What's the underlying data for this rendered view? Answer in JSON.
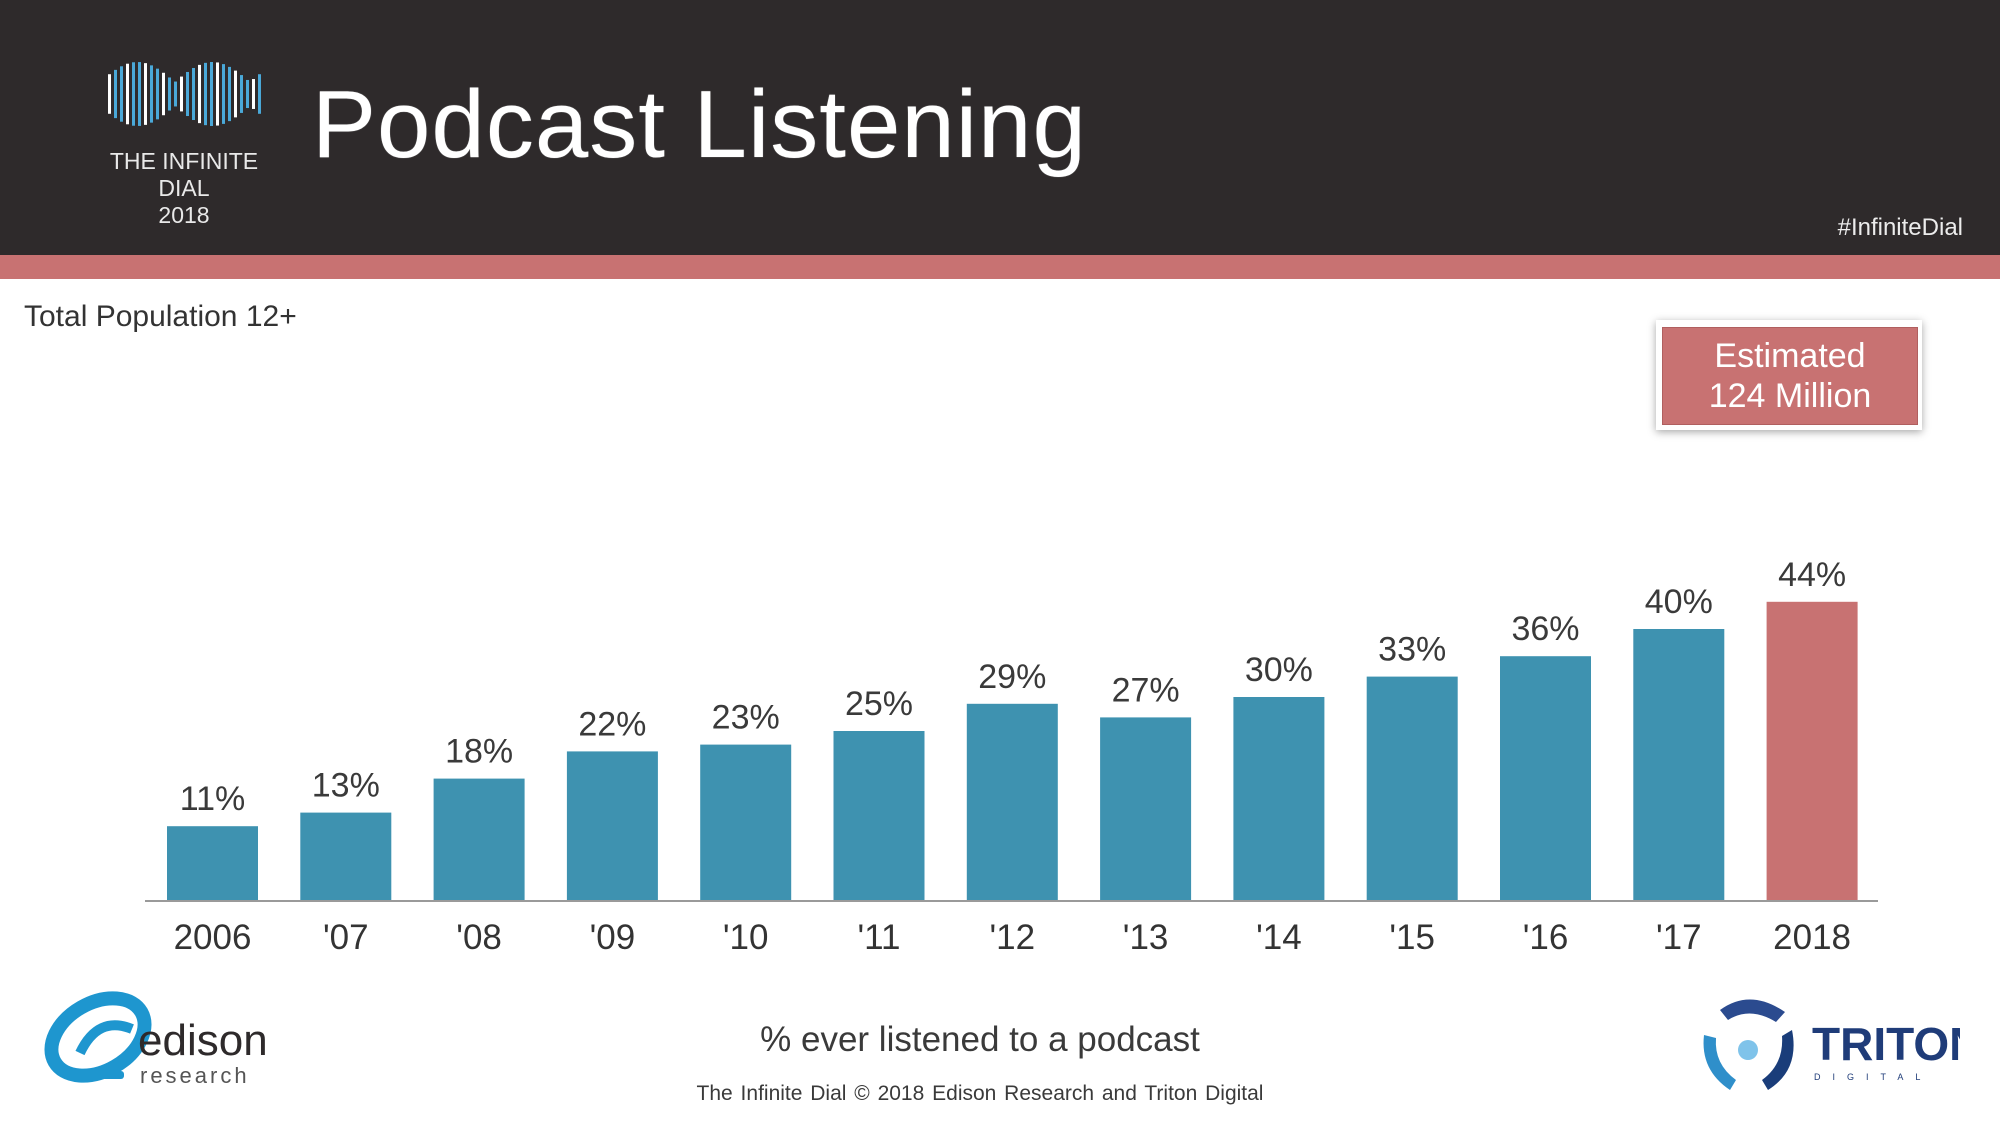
{
  "header": {
    "title": "Podcast Listening",
    "brand_line1": "THE INFINITE DIAL",
    "brand_line2": "2018",
    "hashtag": "#InfiniteDial"
  },
  "subtitle": "Total Population 12+",
  "callout": {
    "line1": "Estimated",
    "line2": "124 Million"
  },
  "footer": {
    "caption": "% ever listened to a podcast",
    "copyright": "The Infinite Dial    © 2018 Edison Research and Triton Digital",
    "edison_word": "edison",
    "edison_sub": "research",
    "triton_word": "TRITON",
    "triton_sub": "DIGITAL"
  },
  "colors": {
    "header_bg": "#2e2a2b",
    "accent": "#c87272",
    "bar": "#3e92b0"
  },
  "chart_data": {
    "type": "bar",
    "title": "Podcast Listening",
    "xlabel": "% ever listened to a podcast",
    "ylabel": "",
    "categories": [
      "2006",
      "'07",
      "'08",
      "'09",
      "'10",
      "'11",
      "'12",
      "'13",
      "'14",
      "'15",
      "'16",
      "'17",
      "2018"
    ],
    "values": [
      11,
      13,
      18,
      22,
      23,
      25,
      29,
      27,
      30,
      33,
      36,
      40,
      44
    ],
    "value_labels": [
      "11%",
      "13%",
      "18%",
      "22%",
      "23%",
      "25%",
      "29%",
      "27%",
      "30%",
      "33%",
      "36%",
      "40%",
      "44%"
    ],
    "highlight_index": 12,
    "bar_color": "#3e92b0",
    "highlight_color": "#c87272",
    "ylim": [
      0,
      50
    ],
    "grid": false
  }
}
